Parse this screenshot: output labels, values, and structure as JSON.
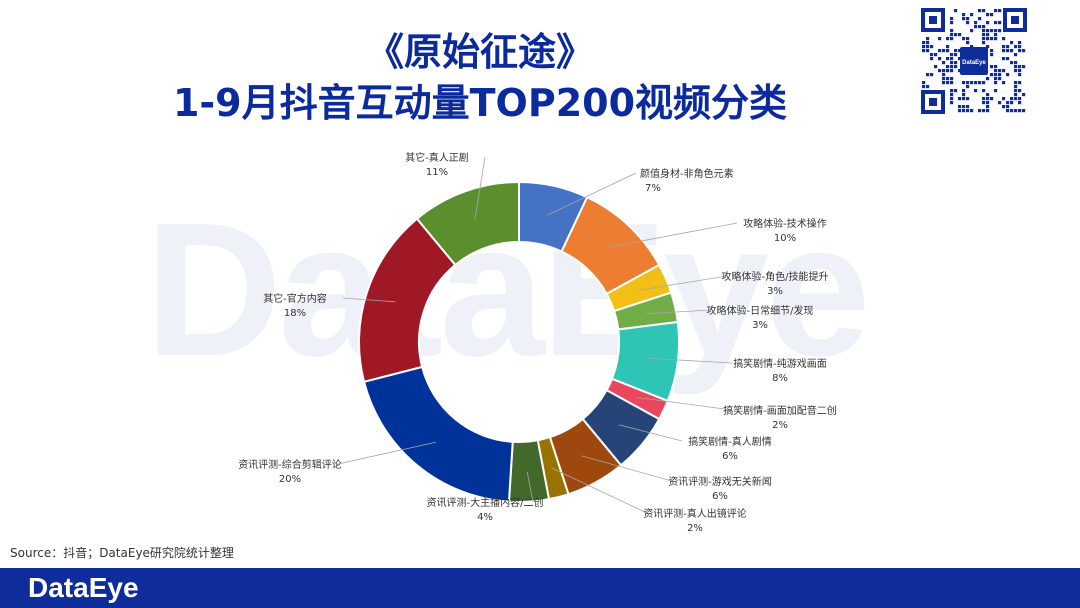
{
  "header": {
    "title_line1": "《原始征途》",
    "title_line2": "1-9月抖音互动量TOP200视频分类"
  },
  "watermark": "DataEye",
  "qr_badge": "DataEye",
  "source": "Source：抖音；DataEye研究院统计整理",
  "footer": {
    "logo": "DataEye",
    "color": "#0f2d9a"
  },
  "chart_data": {
    "type": "pie",
    "donut": true,
    "unit": "%",
    "series": [
      {
        "label": "颜值身材-非角色元素",
        "value": 7,
        "color": "#4472c4"
      },
      {
        "label": "攻略体验-技术操作",
        "value": 10,
        "color": "#ed7d31"
      },
      {
        "label": "攻略体验-角色/技能提升",
        "value": 3,
        "color": "#f2c014"
      },
      {
        "label": "攻略体验-日常细节/发现",
        "value": 3,
        "color": "#70ad47"
      },
      {
        "label": "搞笑剧情-纯游戏画面",
        "value": 8,
        "color": "#2ec4b6"
      },
      {
        "label": "搞笑剧情-画面加配音二创",
        "value": 2,
        "color": "#e8485e"
      },
      {
        "label": "搞笑剧情-真人剧情",
        "value": 6,
        "color": "#264478"
      },
      {
        "label": "资讯评测-游戏无关新闻",
        "value": 6,
        "color": "#9e480e"
      },
      {
        "label": "资讯评测-真人出镜评论",
        "value": 2,
        "color": "#997300"
      },
      {
        "label": "资讯评测-大主播内容/二创",
        "value": 4,
        "color": "#43682b"
      },
      {
        "label": "资讯评测-综合剪辑评论",
        "value": 20,
        "color": "#003399"
      },
      {
        "label": "其它-官方内容",
        "value": 18,
        "color": "#a01825"
      },
      {
        "label": "其它-真人正剧",
        "value": 11,
        "color": "#5b8f2e"
      }
    ]
  }
}
